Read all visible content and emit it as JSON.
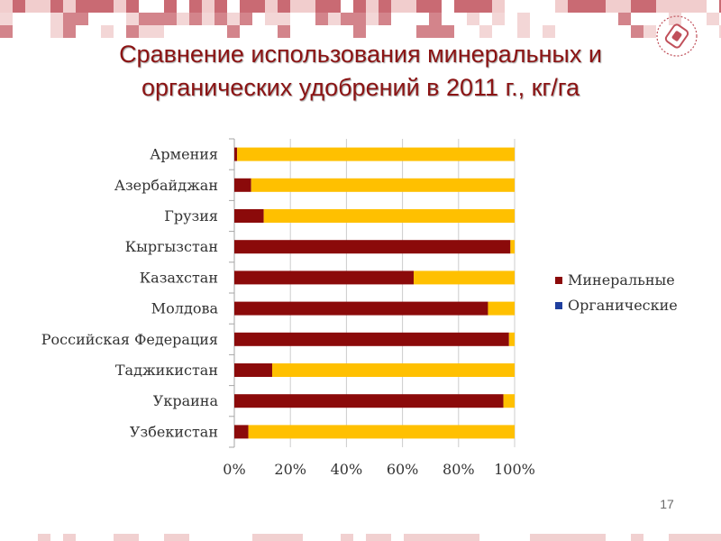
{
  "slide": {
    "title_line1": "Сравнение использования минеральных и",
    "title_line2": "органических удобрений в 2011 г., кг/га",
    "page_number": "17"
  },
  "colors": {
    "title": "#8b1414",
    "mineral": "#8b0a0a",
    "organic": "#1f3f9e",
    "remainder": "#ffc000",
    "grid": "#cccccc",
    "mosaic_dark": "#c0505a",
    "mosaic_light": "#eec4c4"
  },
  "chart_data": {
    "type": "bar",
    "orientation": "horizontal",
    "stacked": "percent",
    "categories": [
      "Армения",
      "Азербайджан",
      "Грузия",
      "Кыргызстан",
      "Казахстан",
      "Молдова",
      "Российская Федерация",
      "Таджикистан",
      "Украина",
      "Узбекистан"
    ],
    "series": [
      {
        "name": "Минеральные",
        "values": [
          1,
          6,
          10.5,
          98.5,
          64,
          90.5,
          98,
          13.5,
          96,
          5
        ]
      },
      {
        "name": "Органические",
        "values": [
          99,
          94,
          89.5,
          1.5,
          36,
          9.5,
          2,
          86.5,
          4,
          95
        ]
      }
    ],
    "xlim": [
      0,
      100
    ],
    "xticks": [
      "0%",
      "20%",
      "40%",
      "60%",
      "80%",
      "100%"
    ],
    "legend": [
      "Минеральные",
      "Органические"
    ],
    "legend_position": "right",
    "grid": true
  }
}
